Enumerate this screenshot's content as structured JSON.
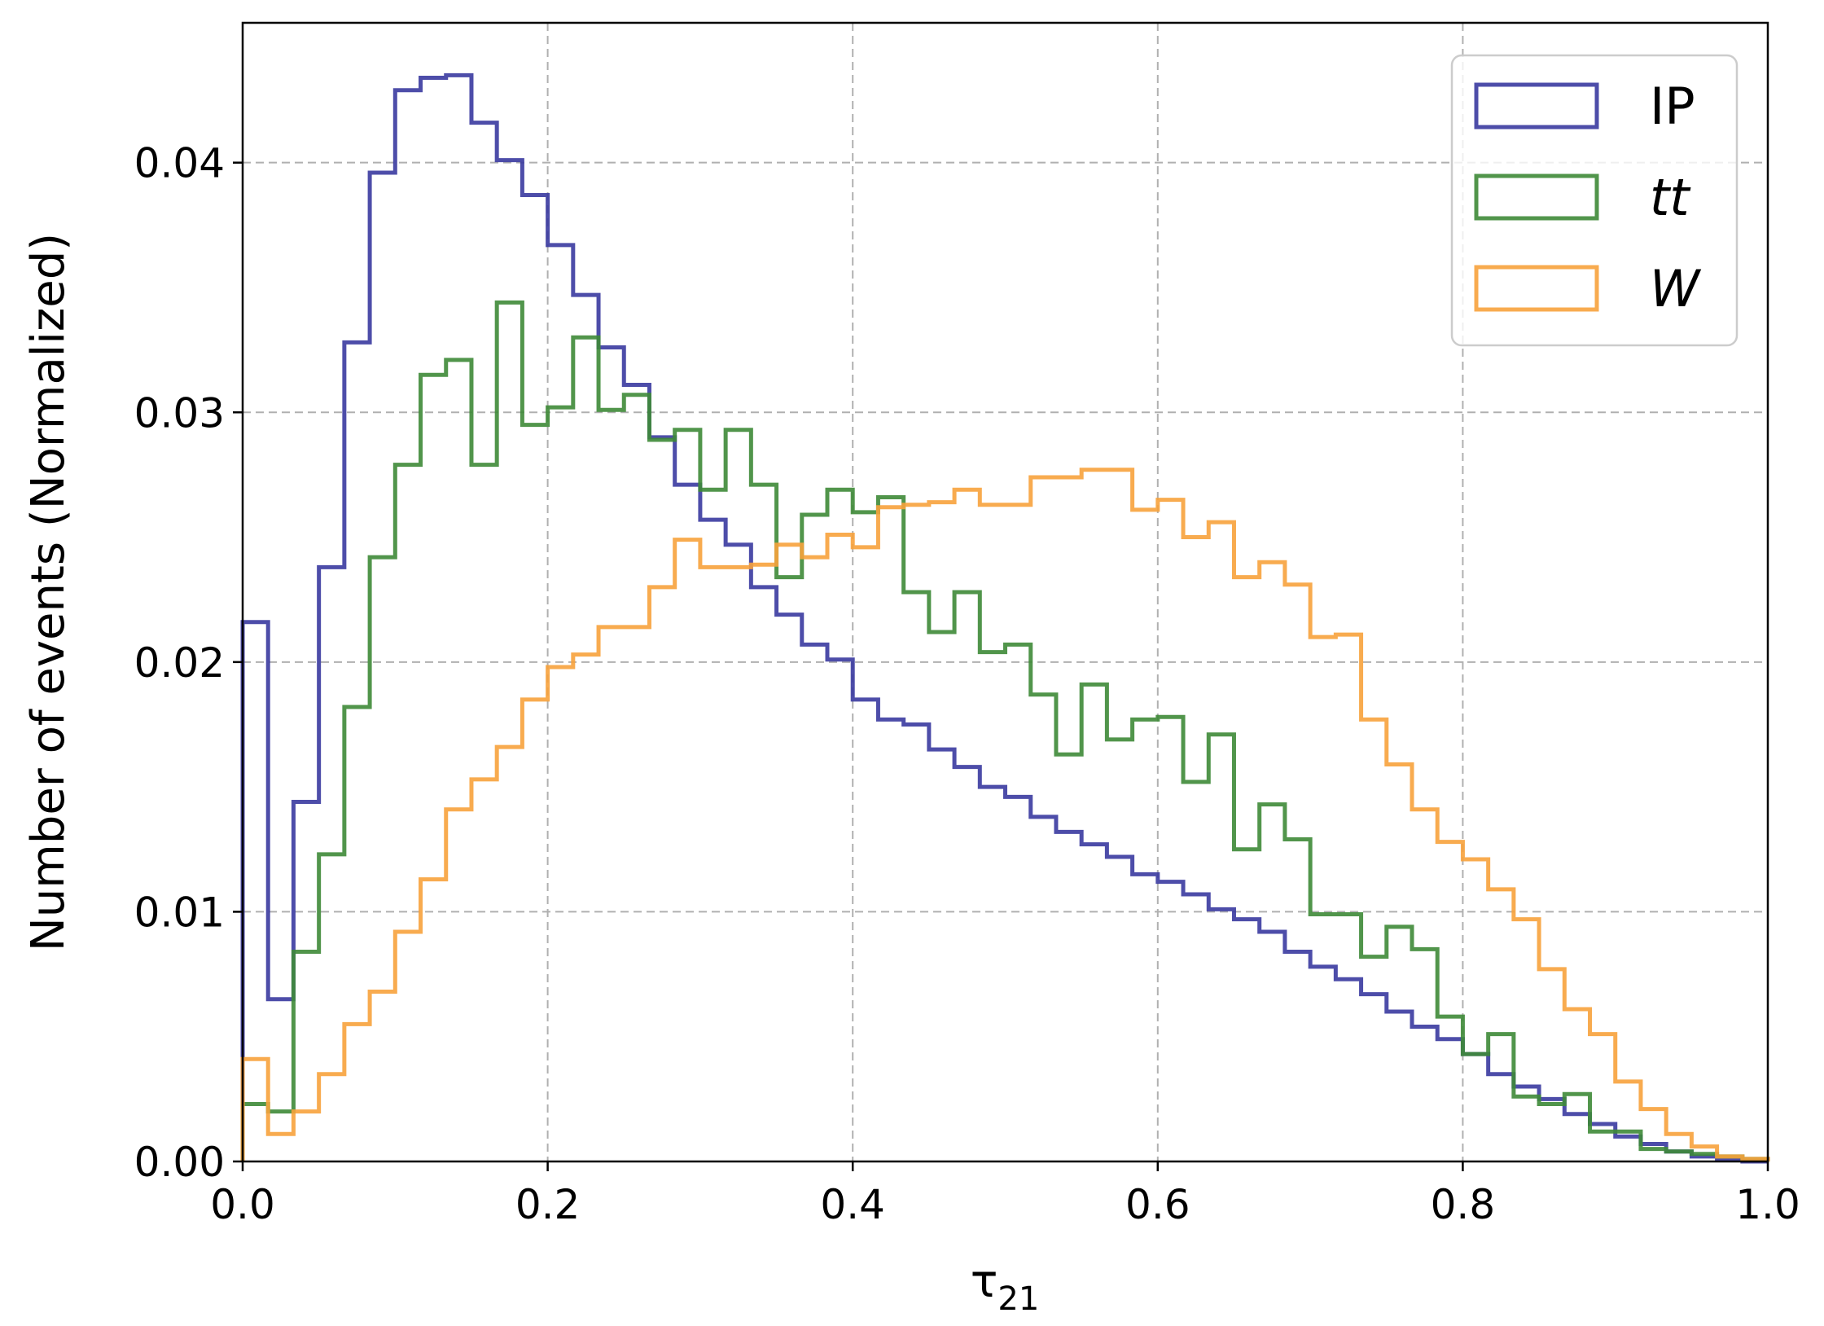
{
  "chart_data": {
    "type": "histogram",
    "xlabel": "τ",
    "xlabel_sub": "21",
    "ylabel": "Number of events (Normalized)",
    "xlim": [
      0.0,
      1.0
    ],
    "ylim": [
      0.0,
      0.0456
    ],
    "x_ticks": [
      "0.0",
      "0.2",
      "0.4",
      "0.6",
      "0.8",
      "1.0"
    ],
    "y_ticks": [
      "0.00",
      "0.01",
      "0.02",
      "0.03",
      "0.04"
    ],
    "grid": true,
    "legend_position": "top-right",
    "bins": {
      "start": 0.0,
      "width": 0.016667,
      "count": 60
    },
    "series": [
      {
        "name": "IP",
        "style": "normal",
        "color": "#3a3aa0",
        "values": [
          0.0216,
          0.0065,
          0.0144,
          0.0238,
          0.0328,
          0.0396,
          0.0429,
          0.0434,
          0.0435,
          0.0416,
          0.0401,
          0.0387,
          0.0367,
          0.0347,
          0.0326,
          0.0311,
          0.029,
          0.0271,
          0.0257,
          0.0247,
          0.023,
          0.0219,
          0.0207,
          0.0201,
          0.0185,
          0.0177,
          0.0175,
          0.0165,
          0.0158,
          0.015,
          0.0146,
          0.0138,
          0.0132,
          0.0127,
          0.0122,
          0.0115,
          0.0112,
          0.0107,
          0.0101,
          0.0097,
          0.0092,
          0.0084,
          0.0078,
          0.0073,
          0.0067,
          0.006,
          0.0054,
          0.0049,
          0.0043,
          0.0035,
          0.003,
          0.0025,
          0.0019,
          0.0015,
          0.001,
          0.0007,
          0.0004,
          0.0002,
          0.0001,
          0.0
        ]
      },
      {
        "name": "tt",
        "style": "italic",
        "color": "#3e8a37",
        "values": [
          0.0023,
          0.002,
          0.0084,
          0.0123,
          0.0182,
          0.0242,
          0.0279,
          0.0315,
          0.0321,
          0.0279,
          0.0344,
          0.0295,
          0.0302,
          0.033,
          0.0301,
          0.0307,
          0.0289,
          0.0293,
          0.0269,
          0.0293,
          0.0271,
          0.0234,
          0.0259,
          0.0269,
          0.026,
          0.0266,
          0.0228,
          0.0212,
          0.0228,
          0.0204,
          0.0207,
          0.0187,
          0.0163,
          0.0191,
          0.0169,
          0.0177,
          0.0178,
          0.0152,
          0.0171,
          0.0125,
          0.0143,
          0.0129,
          0.0099,
          0.0099,
          0.0082,
          0.0094,
          0.0085,
          0.0058,
          0.0043,
          0.0051,
          0.0026,
          0.0023,
          0.0027,
          0.0012,
          0.0012,
          0.0005,
          0.0004,
          0.0003,
          0.0002,
          0.0001
        ]
      },
      {
        "name": "W",
        "style": "italic",
        "color": "#f7a23c",
        "values": [
          0.0041,
          0.0011,
          0.002,
          0.0035,
          0.0055,
          0.0068,
          0.0092,
          0.0113,
          0.0141,
          0.0153,
          0.0166,
          0.0185,
          0.0198,
          0.0203,
          0.0214,
          0.0214,
          0.023,
          0.0249,
          0.0238,
          0.0238,
          0.0239,
          0.0247,
          0.0242,
          0.0251,
          0.0246,
          0.0262,
          0.0263,
          0.0264,
          0.0269,
          0.0263,
          0.0263,
          0.0274,
          0.0274,
          0.0277,
          0.0277,
          0.0261,
          0.0265,
          0.025,
          0.0256,
          0.0234,
          0.024,
          0.0231,
          0.021,
          0.0211,
          0.0177,
          0.0159,
          0.0141,
          0.0128,
          0.0121,
          0.0109,
          0.0097,
          0.0077,
          0.0061,
          0.0051,
          0.0032,
          0.0021,
          0.0011,
          0.0006,
          0.0002,
          0.0001
        ]
      }
    ]
  }
}
